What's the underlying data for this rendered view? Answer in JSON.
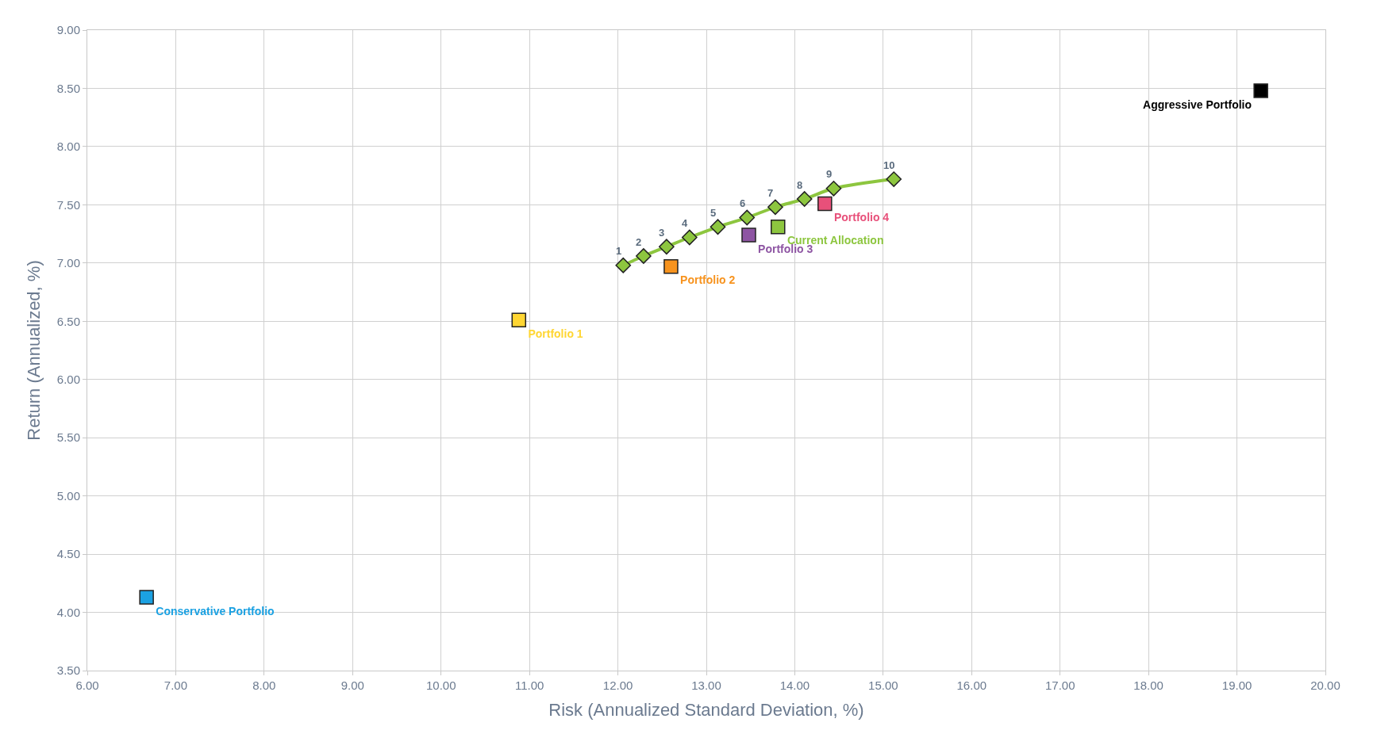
{
  "chart_data": {
    "type": "scatter",
    "xlabel": "Risk (Annualized Standard Deviation, %)",
    "ylabel": "Return (Annualized, %)",
    "xlim": [
      6,
      20
    ],
    "xticks": [
      {
        "value": 6,
        "label": "6.00"
      },
      {
        "value": 7,
        "label": "7.00"
      },
      {
        "value": 8,
        "label": "8.00"
      },
      {
        "value": 9,
        "label": "9.00"
      },
      {
        "value": 10,
        "label": "10.00"
      },
      {
        "value": 11,
        "label": "11.00"
      },
      {
        "value": 12,
        "label": "12.00"
      },
      {
        "value": 13,
        "label": "13.00"
      },
      {
        "value": 14,
        "label": "14.00"
      },
      {
        "value": 15,
        "label": "15.00"
      },
      {
        "value": 16,
        "label": "16.00"
      },
      {
        "value": 17,
        "label": "17.00"
      },
      {
        "value": 18,
        "label": "18.00"
      },
      {
        "value": 19,
        "label": "19.00"
      },
      {
        "value": 20,
        "label": "20.00"
      }
    ],
    "ylim": [
      3.5,
      9
    ],
    "yticks": [
      {
        "value": 3.5,
        "label": "3.50"
      },
      {
        "value": 4,
        "label": "4.00"
      },
      {
        "value": 4.5,
        "label": "4.50"
      },
      {
        "value": 5,
        "label": "5.00"
      },
      {
        "value": 5.5,
        "label": "5.50"
      },
      {
        "value": 6,
        "label": "6.00"
      },
      {
        "value": 6.5,
        "label": "6.50"
      },
      {
        "value": 7,
        "label": "7.00"
      },
      {
        "value": 7.5,
        "label": "7.50"
      },
      {
        "value": 8,
        "label": "8.00"
      },
      {
        "value": 8.5,
        "label": "8.50"
      },
      {
        "value": 9,
        "label": "9.00"
      }
    ],
    "grid": true,
    "annotations": [
      {
        "text": "1",
        "x": 12.06,
        "y": 6.98
      },
      {
        "text": "2",
        "x": 12.29,
        "y": 7.06
      },
      {
        "text": "3",
        "x": 12.55,
        "y": 7.14
      },
      {
        "text": "4",
        "x": 12.81,
        "y": 7.22
      },
      {
        "text": "5",
        "x": 13.13,
        "y": 7.31
      },
      {
        "text": "6",
        "x": 13.46,
        "y": 7.39
      },
      {
        "text": "7",
        "x": 13.78,
        "y": 7.48
      },
      {
        "text": "8",
        "x": 14.11,
        "y": 7.55
      },
      {
        "text": "9",
        "x": 14.44,
        "y": 7.64
      },
      {
        "text": "10",
        "x": 15.12,
        "y": 7.72
      }
    ],
    "legend": false,
    "series": [
      {
        "type": "line",
        "color": "#8dc63f",
        "marker": "diamond",
        "x": [
          12.06,
          12.29,
          12.55,
          12.81,
          13.13,
          13.46,
          13.78,
          14.11,
          14.44,
          15.12
        ],
        "values": [
          6.98,
          7.06,
          7.14,
          7.22,
          7.31,
          7.39,
          7.48,
          7.55,
          7.64,
          7.72
        ]
      },
      {
        "name": "Conservative Portfolio",
        "color": "#1ba1e2",
        "marker": "square",
        "x": [
          6.67
        ],
        "values": [
          4.13
        ]
      },
      {
        "name": "Portfolio 1",
        "color": "#ffd633",
        "marker": "square",
        "x": [
          10.88
        ],
        "values": [
          6.51
        ]
      },
      {
        "name": "Portfolio 2",
        "color": "#f7931e",
        "marker": "square",
        "x": [
          12.6
        ],
        "values": [
          6.97
        ]
      },
      {
        "name": "Portfolio 3",
        "color": "#8e55a3",
        "marker": "square",
        "x": [
          13.48
        ],
        "values": [
          7.24
        ]
      },
      {
        "name": "Current Allocation",
        "color": "#8dc63f",
        "marker": "square",
        "x": [
          13.81
        ],
        "values": [
          7.31
        ]
      },
      {
        "name": "Portfolio 4",
        "color": "#e8507a",
        "marker": "square",
        "x": [
          14.34
        ],
        "values": [
          7.51
        ]
      },
      {
        "name": "Aggressive Portfolio",
        "color": "#000000",
        "marker": "square",
        "x": [
          19.27
        ],
        "values": [
          8.48
        ]
      }
    ]
  }
}
